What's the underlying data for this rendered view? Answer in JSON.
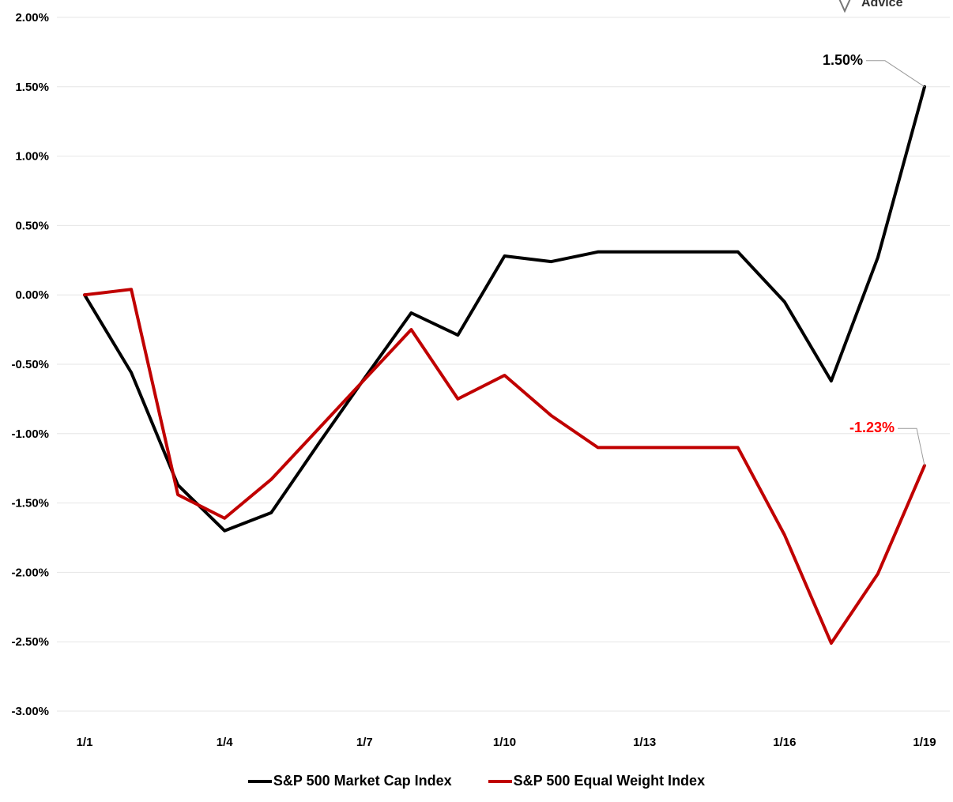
{
  "brand": {
    "logo_text": "Advice"
  },
  "chart_data": {
    "type": "line",
    "title": "",
    "xlabel": "",
    "ylabel": "",
    "ylim": [
      -0.03,
      0.02
    ],
    "y_ticks": [
      0.02,
      0.015,
      0.01,
      0.005,
      0.0,
      -0.005,
      -0.01,
      -0.015,
      -0.02,
      -0.025,
      -0.03
    ],
    "y_tick_labels": [
      "2.00%",
      "1.50%",
      "1.00%",
      "0.50%",
      "0.00%",
      "-0.50%",
      "-1.00%",
      "-1.50%",
      "-2.00%",
      "-2.50%",
      "-3.00%"
    ],
    "x_categories": [
      "1/1",
      "1/2",
      "1/3",
      "1/4",
      "1/5",
      "1/6",
      "1/7",
      "1/8",
      "1/9",
      "1/10",
      "1/11",
      "1/12",
      "1/13",
      "1/14",
      "1/15",
      "1/16",
      "1/17",
      "1/18",
      "1/19"
    ],
    "x_tick_labels": [
      "1/1",
      "1/4",
      "1/7",
      "1/10",
      "1/13",
      "1/16",
      "1/19"
    ],
    "grid": "horizontal",
    "legend_position": "bottom",
    "series": [
      {
        "name": "S&P 500 Market Cap Index",
        "color": "#000000",
        "values": [
          0.0,
          -0.0056,
          -0.0137,
          -0.017,
          -0.0157,
          -0.0108,
          -0.006,
          -0.0013,
          -0.0029,
          0.0028,
          0.0024,
          0.0031,
          0.0031,
          0.0031,
          0.0031,
          -0.0005,
          -0.0062,
          0.0027,
          0.015
        ],
        "end_label": "1.50%",
        "end_label_color": "#000000"
      },
      {
        "name": "S&P 500 Equal Weight Index",
        "color": "#c00000",
        "values": [
          0.0,
          0.0004,
          -0.0144,
          -0.0161,
          -0.0133,
          -0.0097,
          -0.0061,
          -0.0025,
          -0.0075,
          -0.0058,
          -0.0087,
          -0.011,
          -0.011,
          -0.011,
          -0.011,
          -0.0173,
          -0.0251,
          -0.0201,
          -0.0123
        ],
        "end_label": "-1.23%",
        "end_label_color": "#ff0000"
      }
    ]
  }
}
